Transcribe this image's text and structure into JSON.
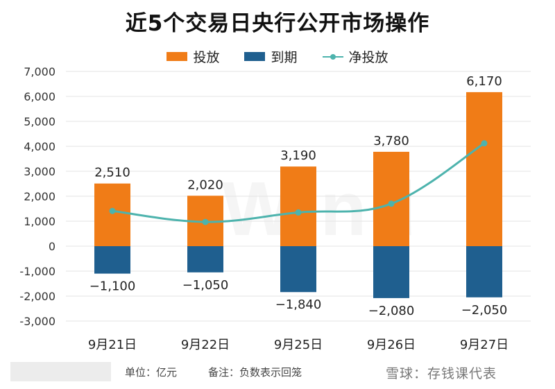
{
  "title": "近5个交易日央行公开市场操作",
  "legend": {
    "release": "投放",
    "expire": "到期",
    "net": "净投放"
  },
  "colors": {
    "release": "#f07c17",
    "expire": "#1f5f8f",
    "net": "#4db3ad",
    "grid": "#e3e3e3"
  },
  "chart_data": {
    "type": "bar",
    "categories": [
      "9月21日",
      "9月22日",
      "9月25日",
      "9月26日",
      "9月27日"
    ],
    "series": [
      {
        "name": "投放",
        "type": "bar",
        "values": [
          2510,
          2020,
          3190,
          3780,
          6170
        ],
        "labels": [
          "2,510",
          "2,020",
          "3,190",
          "3,780",
          "6,170"
        ]
      },
      {
        "name": "到期",
        "type": "bar",
        "values": [
          -1100,
          -1050,
          -1840,
          -2080,
          -2050
        ],
        "labels": [
          "−1,100",
          "−1,050",
          "−1,840",
          "−2,080",
          "−2,050"
        ]
      },
      {
        "name": "净投放",
        "type": "line",
        "values": [
          1410,
          970,
          1350,
          1700,
          4120
        ]
      }
    ],
    "ylim": [
      -3000,
      7000
    ],
    "yticks": [
      -3000,
      -2000,
      -1000,
      0,
      1000,
      2000,
      3000,
      4000,
      5000,
      6000,
      7000
    ],
    "ytick_labels": [
      "-3,000",
      "-2,000",
      "-1,000",
      "0",
      "1,000",
      "2,000",
      "3,000",
      "4,000",
      "5,000",
      "6,000",
      "7,000"
    ],
    "grid": true,
    "legend_position": "top-center"
  },
  "footer": {
    "unit": "单位：亿元",
    "note": "备注：负数表示回笼",
    "brand": "雪球：存钱课代表"
  },
  "watermark": "Wind"
}
